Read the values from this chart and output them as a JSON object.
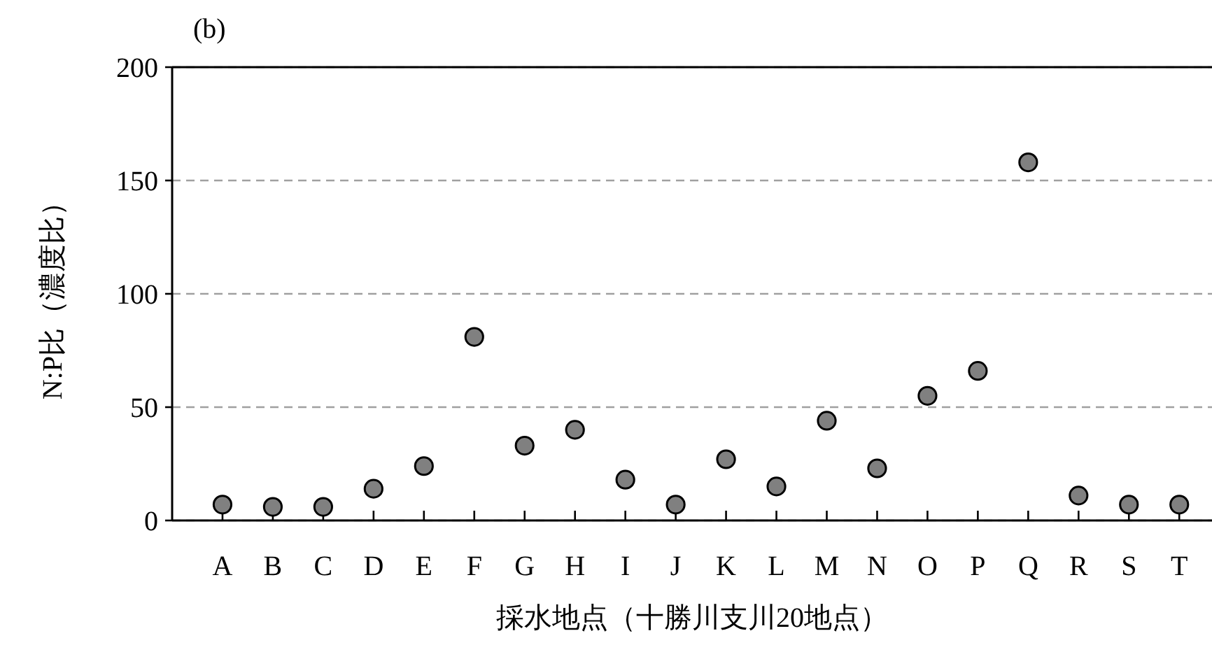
{
  "chart_data": {
    "type": "scatter",
    "annotations": [
      "(b)"
    ],
    "xlabel": "採水地点（十勝川支川20地点）",
    "ylabel": "N:P比（濃度比）",
    "categories": [
      "A",
      "B",
      "C",
      "D",
      "E",
      "F",
      "G",
      "H",
      "I",
      "J",
      "K",
      "L",
      "M",
      "N",
      "O",
      "P",
      "Q",
      "R",
      "S",
      "T"
    ],
    "values": [
      7,
      6,
      6,
      14,
      24,
      81,
      33,
      40,
      18,
      7,
      27,
      15,
      44,
      23,
      55,
      66,
      158,
      11,
      7,
      7
    ],
    "color": "#808080",
    "marker": "circle",
    "ylim": [
      0,
      200
    ],
    "yticks": [
      0,
      50,
      100,
      150,
      200
    ],
    "grid": "y"
  }
}
